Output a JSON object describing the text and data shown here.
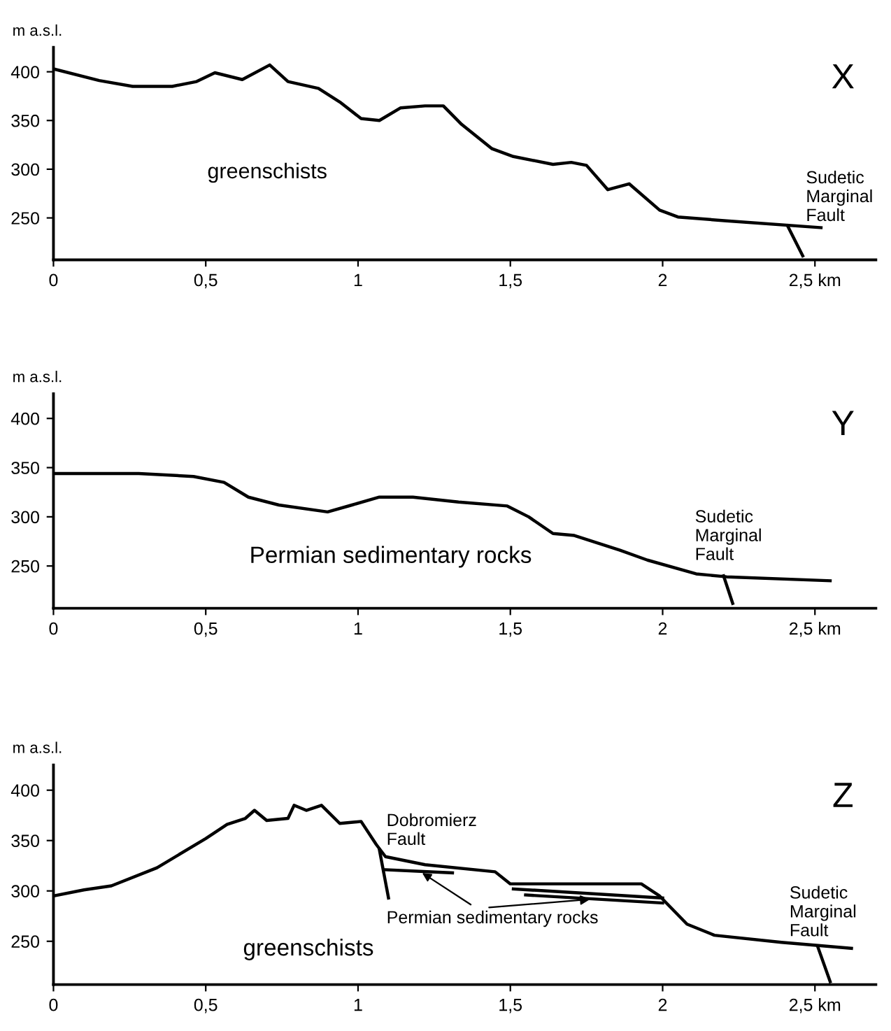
{
  "chart_data": [
    {
      "type": "line",
      "title": "X",
      "ylabel": "m a.s.l.",
      "xlim": [
        0,
        2.7
      ],
      "ylim": [
        207,
        425
      ],
      "xticks": [
        {
          "value": 0,
          "label": "0"
        },
        {
          "value": 0.5,
          "label": "0,5"
        },
        {
          "value": 1,
          "label": "1"
        },
        {
          "value": 1.5,
          "label": "1,5"
        },
        {
          "value": 2,
          "label": "2"
        },
        {
          "value": 2.5,
          "label": "2,5 km"
        }
      ],
      "yticks": [
        250,
        300,
        350,
        400
      ],
      "grid": false,
      "legend": false,
      "annotations": [
        "greenschists",
        "Sudetic\nMarginal\nFault"
      ],
      "series": [
        {
          "color": "#000000",
          "x": [
            0,
            0.15,
            0.26,
            0.39,
            0.47,
            0.53,
            0.62,
            0.71,
            0.77,
            0.87,
            0.94,
            1.01,
            1.07,
            1.14,
            1.22,
            1.28,
            1.34,
            1.44,
            1.51,
            1.64,
            1.7,
            1.75,
            1.82,
            1.89,
            1.99,
            2.05,
            2.21,
            2.52
          ],
          "values": [
            403,
            391,
            385,
            385,
            390,
            399,
            392,
            407,
            390,
            383,
            369,
            352,
            350,
            363,
            365,
            365,
            346,
            321,
            313,
            305,
            307,
            304,
            279,
            285,
            258,
            251,
            247,
            240
          ]
        },
        {
          "color": "#000000",
          "x": [
            2.41,
            2.46
          ],
          "values": [
            242,
            211
          ]
        }
      ]
    },
    {
      "type": "line",
      "title": "Y",
      "ylabel": "m a.s.l.",
      "xlim": [
        0,
        2.7
      ],
      "ylim": [
        207,
        425
      ],
      "xticks": [
        {
          "value": 0,
          "label": "0"
        },
        {
          "value": 0.5,
          "label": "0,5"
        },
        {
          "value": 1,
          "label": "1"
        },
        {
          "value": 1.5,
          "label": "1,5"
        },
        {
          "value": 2,
          "label": "2"
        },
        {
          "value": 2.5,
          "label": "2,5 km"
        }
      ],
      "yticks": [
        250,
        300,
        350,
        400
      ],
      "grid": false,
      "legend": false,
      "annotations": [
        "Permian sedimentary rocks",
        "Sudetic\nMarginal\nFault"
      ],
      "series": [
        {
          "color": "#000000",
          "x": [
            0,
            0.28,
            0.46,
            0.56,
            0.64,
            0.74,
            0.9,
            0.98,
            1.07,
            1.18,
            1.33,
            1.49,
            1.56,
            1.64,
            1.71,
            1.86,
            1.95,
            2.11,
            2.21,
            2.55
          ],
          "values": [
            344,
            344,
            341,
            335,
            320,
            312,
            305,
            312,
            320,
            320,
            315,
            311,
            300,
            283,
            281,
            266,
            256,
            242,
            239,
            235
          ]
        },
        {
          "color": "#000000",
          "x": [
            2.2,
            2.23
          ],
          "values": [
            240,
            212
          ]
        }
      ]
    },
    {
      "type": "line",
      "title": "Z",
      "ylabel": "m a.s.l.",
      "xlim": [
        0,
        2.7
      ],
      "ylim": [
        207,
        425
      ],
      "xticks": [
        {
          "value": 0,
          "label": "0"
        },
        {
          "value": 0.5,
          "label": "0,5"
        },
        {
          "value": 1,
          "label": "1"
        },
        {
          "value": 1.5,
          "label": "1,5"
        },
        {
          "value": 2,
          "label": "2"
        },
        {
          "value": 2.5,
          "label": "2,5 km"
        }
      ],
      "yticks": [
        250,
        300,
        350,
        400
      ],
      "grid": false,
      "legend": false,
      "annotations": [
        "greenschists",
        "Dobromierz\nFault",
        {
          "text": "Permian sedimentary rocks",
          "x": 1.2,
          "y": 320
        },
        "Sudetic\nMarginal\nFault"
      ],
      "series": [
        {
          "color": "#000000",
          "x": [
            0,
            0.1,
            0.19,
            0.34,
            0.5,
            0.57,
            0.63,
            0.66,
            0.7,
            0.77,
            0.79,
            0.83,
            0.88,
            0.94,
            1.01,
            1.06,
            1.09,
            1.22,
            1.45,
            1.5,
            1.93,
            1.99,
            2.08,
            2.17,
            2.39,
            2.62
          ],
          "values": [
            295,
            301,
            305,
            323,
            352,
            366,
            372,
            380,
            370,
            372,
            385,
            380,
            385,
            367,
            369,
            346,
            334,
            326,
            319,
            307,
            307,
            295,
            267,
            256,
            249,
            243
          ]
        },
        {
          "color": "#000000",
          "x": [
            1.07,
            1.1
          ],
          "values": [
            341,
            293
          ]
        },
        {
          "color": "#000000",
          "x": [
            1.09,
            1.31
          ],
          "values": [
            321,
            318
          ]
        },
        {
          "color": "#000000",
          "x": [
            1.51,
            2.0
          ],
          "values": [
            302,
            293
          ]
        },
        {
          "color": "#000000",
          "x": [
            1.55,
            2.0
          ],
          "values": [
            296,
            288
          ]
        },
        {
          "color": "#000000",
          "x": [
            2.51,
            2.55
          ],
          "values": [
            244,
            210
          ]
        }
      ]
    }
  ]
}
